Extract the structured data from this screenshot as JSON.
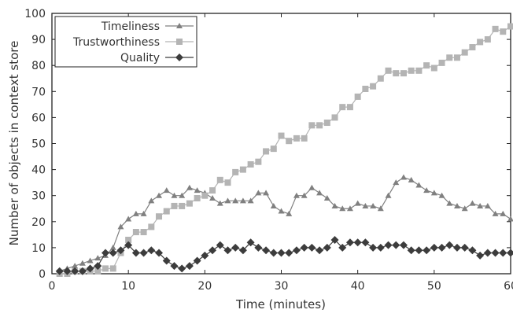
{
  "chart_data": {
    "type": "line",
    "title": "",
    "xlabel": "Time (minutes)",
    "ylabel": "Number of objects in context store",
    "xlim": [
      0,
      60
    ],
    "ylim": [
      0,
      100
    ],
    "x_ticks": [
      0,
      10,
      20,
      30,
      40,
      50,
      60
    ],
    "y_ticks": [
      0,
      10,
      20,
      30,
      40,
      50,
      60,
      70,
      80,
      90,
      100
    ],
    "grid": false,
    "legend_position": "top-left",
    "x": [
      1,
      2,
      3,
      4,
      5,
      6,
      7,
      8,
      9,
      10,
      11,
      12,
      13,
      14,
      15,
      16,
      17,
      18,
      19,
      20,
      21,
      22,
      23,
      24,
      25,
      26,
      27,
      28,
      29,
      30,
      31,
      32,
      33,
      34,
      35,
      36,
      37,
      38,
      39,
      40,
      41,
      42,
      43,
      44,
      45,
      46,
      47,
      48,
      49,
      50,
      51,
      52,
      53,
      54,
      55,
      56,
      57,
      58,
      59,
      60
    ],
    "series": [
      {
        "name": "Timeliness",
        "marker": "triangle",
        "color": "#808080",
        "values": [
          1,
          2,
          3,
          4,
          5,
          6,
          7,
          10,
          18,
          21,
          23,
          23,
          28,
          30,
          32,
          30,
          30,
          33,
          32,
          31,
          29,
          27,
          28,
          28,
          28,
          28,
          31,
          31,
          26,
          24,
          23,
          30,
          30,
          33,
          31,
          29,
          26,
          25,
          25,
          27,
          26,
          26,
          25,
          30,
          35,
          37,
          36,
          34,
          32,
          31,
          30,
          27,
          26,
          25,
          27,
          26,
          26,
          23,
          23,
          21
        ]
      },
      {
        "name": "Trustworthiness",
        "marker": "square",
        "color": "#b4b4b4",
        "values": [
          0,
          0,
          1,
          1,
          1,
          1,
          2,
          2,
          8,
          13,
          16,
          16,
          18,
          22,
          24,
          26,
          26,
          27,
          29,
          30,
          32,
          36,
          35,
          39,
          40,
          42,
          43,
          47,
          48,
          53,
          51,
          52,
          52,
          57,
          57,
          58,
          60,
          64,
          64,
          68,
          71,
          72,
          75,
          78,
          77,
          77,
          78,
          78,
          80,
          79,
          81,
          83,
          83,
          85,
          87,
          89,
          90,
          94,
          93,
          95
        ]
      },
      {
        "name": "Quality",
        "marker": "diamond",
        "color": "#3c3c3c",
        "values": [
          1,
          1,
          1,
          1,
          2,
          3,
          8,
          8,
          9,
          11,
          8,
          8,
          9,
          8,
          5,
          3,
          2,
          3,
          5,
          7,
          9,
          11,
          9,
          10,
          9,
          12,
          10,
          9,
          8,
          8,
          8,
          9,
          10,
          10,
          9,
          10,
          13,
          10,
          12,
          12,
          12,
          10,
          10,
          11,
          11,
          11,
          9,
          9,
          9,
          10,
          10,
          11,
          10,
          10,
          9,
          7,
          8,
          8,
          8,
          8
        ]
      }
    ]
  }
}
